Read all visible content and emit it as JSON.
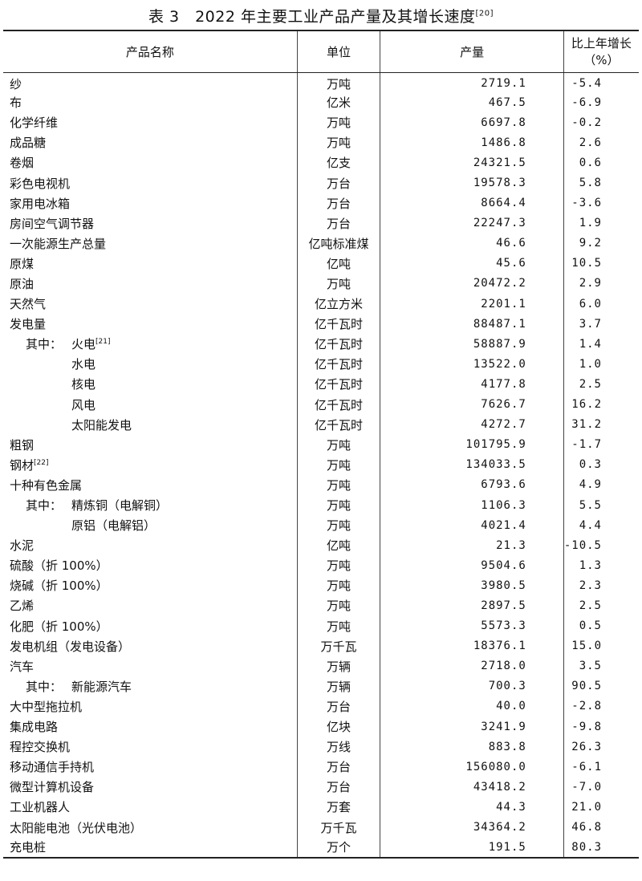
{
  "title": {
    "text": "表 3　2022 年主要工业产品产量及其增长速度",
    "note": "[20]"
  },
  "headers": [
    "产品名称",
    "单位",
    "产量",
    "比上年增长（%）"
  ],
  "rows": [
    {
      "name": "纱",
      "unit": "万吨",
      "output": "2719.1",
      "growth": "-5.4"
    },
    {
      "name": "布",
      "unit": "亿米",
      "output": "467.5",
      "growth": "-6.9"
    },
    {
      "name": "化学纤维",
      "unit": "万吨",
      "output": "6697.8",
      "growth": "-0.2"
    },
    {
      "name": "成品糖",
      "unit": "万吨",
      "output": "1486.8",
      "growth": "2.6"
    },
    {
      "name": "卷烟",
      "unit": "亿支",
      "output": "24321.5",
      "growth": "0.6"
    },
    {
      "name": "彩色电视机",
      "unit": "万台",
      "output": "19578.3",
      "growth": "5.8"
    },
    {
      "name": "家用电冰箱",
      "unit": "万台",
      "output": "8664.4",
      "growth": "-3.6"
    },
    {
      "name": "房间空气调节器",
      "unit": "万台",
      "output": "22247.3",
      "growth": "1.9"
    },
    {
      "name": "一次能源生产总量",
      "unit": "亿吨标准煤",
      "output": "46.6",
      "growth": "9.2"
    },
    {
      "name": "原煤",
      "unit": "亿吨",
      "output": "45.6",
      "growth": "10.5"
    },
    {
      "name": "原油",
      "unit": "万吨",
      "output": "20472.2",
      "growth": "2.9"
    },
    {
      "name": "天然气",
      "unit": "亿立方米",
      "output": "2201.1",
      "growth": "6.0"
    },
    {
      "name": "发电量",
      "unit": "亿千瓦时",
      "output": "88487.1",
      "growth": "3.7"
    },
    {
      "prefix": "其中：",
      "name": "火电",
      "note": "[21]",
      "level": 1,
      "unit": "亿千瓦时",
      "output": "58887.9",
      "growth": "1.4"
    },
    {
      "name": "水电",
      "level": 2,
      "unit": "亿千瓦时",
      "output": "13522.0",
      "growth": "1.0"
    },
    {
      "name": "核电",
      "level": 2,
      "unit": "亿千瓦时",
      "output": "4177.8",
      "growth": "2.5"
    },
    {
      "name": "风电",
      "level": 2,
      "unit": "亿千瓦时",
      "output": "7626.7",
      "growth": "16.2"
    },
    {
      "name": "太阳能发电",
      "level": 2,
      "unit": "亿千瓦时",
      "output": "4272.7",
      "growth": "31.2"
    },
    {
      "name": "粗钢",
      "unit": "万吨",
      "output": "101795.9",
      "growth": "-1.7"
    },
    {
      "name": "钢材",
      "note": "[22]",
      "unit": "万吨",
      "output": "134033.5",
      "growth": "0.3"
    },
    {
      "name": "十种有色金属",
      "unit": "万吨",
      "output": "6793.6",
      "growth": "4.9"
    },
    {
      "prefix": "其中：",
      "name": "精炼铜（电解铜）",
      "level": 1,
      "unit": "万吨",
      "output": "1106.3",
      "growth": "5.5"
    },
    {
      "name": "原铝（电解铝）",
      "level": 2,
      "unit": "万吨",
      "output": "4021.4",
      "growth": "4.4"
    },
    {
      "name": "水泥",
      "unit": "亿吨",
      "output": "21.3",
      "growth": "-10.5"
    },
    {
      "name": "硫酸（折 100%）",
      "unit": "万吨",
      "output": "9504.6",
      "growth": "1.3"
    },
    {
      "name": "烧碱（折 100%）",
      "unit": "万吨",
      "output": "3980.5",
      "growth": "2.3"
    },
    {
      "name": "乙烯",
      "unit": "万吨",
      "output": "2897.5",
      "growth": "2.5"
    },
    {
      "name": "化肥（折 100%）",
      "unit": "万吨",
      "output": "5573.3",
      "growth": "0.5"
    },
    {
      "name": "发电机组（发电设备）",
      "unit": "万千瓦",
      "output": "18376.1",
      "growth": "15.0"
    },
    {
      "name": "汽车",
      "unit": "万辆",
      "output": "2718.0",
      "growth": "3.5"
    },
    {
      "prefix": "其中：",
      "name": "新能源汽车",
      "level": 1,
      "unit": "万辆",
      "output": "700.3",
      "growth": "90.5"
    },
    {
      "name": "大中型拖拉机",
      "unit": "万台",
      "output": "40.0",
      "growth": "-2.8"
    },
    {
      "name": "集成电路",
      "unit": "亿块",
      "output": "3241.9",
      "growth": "-9.8"
    },
    {
      "name": "程控交换机",
      "unit": "万线",
      "output": "883.8",
      "growth": "26.3"
    },
    {
      "name": "移动通信手持机",
      "unit": "万台",
      "output": "156080.0",
      "growth": "-6.1"
    },
    {
      "name": "微型计算机设备",
      "unit": "万台",
      "output": "43418.2",
      "growth": "-7.0"
    },
    {
      "name": "工业机器人",
      "unit": "万套",
      "output": "44.3",
      "growth": "21.0"
    },
    {
      "name": "太阳能电池（光伏电池）",
      "unit": "万千瓦",
      "output": "34364.2",
      "growth": "46.8"
    },
    {
      "name": "充电桩",
      "unit": "万个",
      "output": "191.5",
      "growth": "80.3"
    }
  ]
}
